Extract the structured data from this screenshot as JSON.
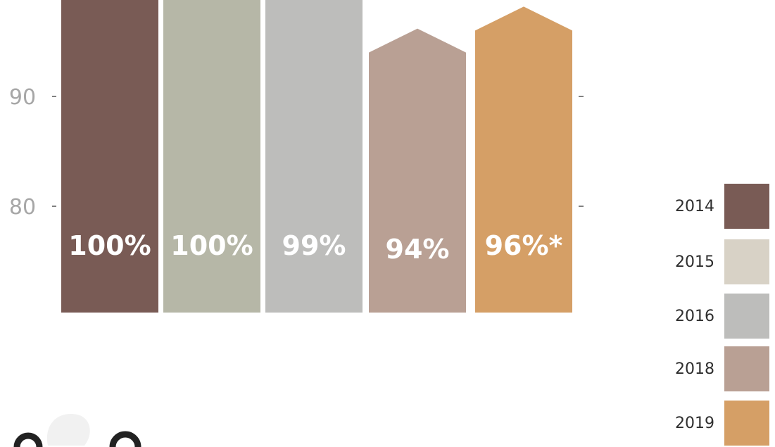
{
  "colors": {
    "2014": "#795b55",
    "2015": "#b6b7a7",
    "2016": "#bdbdbb",
    "2018": "#b9a094",
    "2019": "#d59f66",
    "legend_2015": "#d8d2c6",
    "axis_text": "#a7a7a7",
    "tick": "#555555"
  },
  "chart_data": {
    "type": "bar",
    "categories": [
      "2014",
      "2015",
      "2016",
      "2018",
      "2019"
    ],
    "values": [
      100,
      100,
      99,
      94,
      96
    ],
    "data_labels": [
      "100%",
      "100%",
      "99%",
      "94%",
      "96%*"
    ],
    "y_ticks": [
      {
        "value": 80,
        "label": "80"
      },
      {
        "value": 90,
        "label": "90"
      }
    ],
    "ylim": [
      71,
      103
    ],
    "legend": {
      "placement": "right",
      "entries": [
        "2014",
        "2015",
        "2016",
        "2018",
        "2019"
      ]
    },
    "grid": false
  }
}
